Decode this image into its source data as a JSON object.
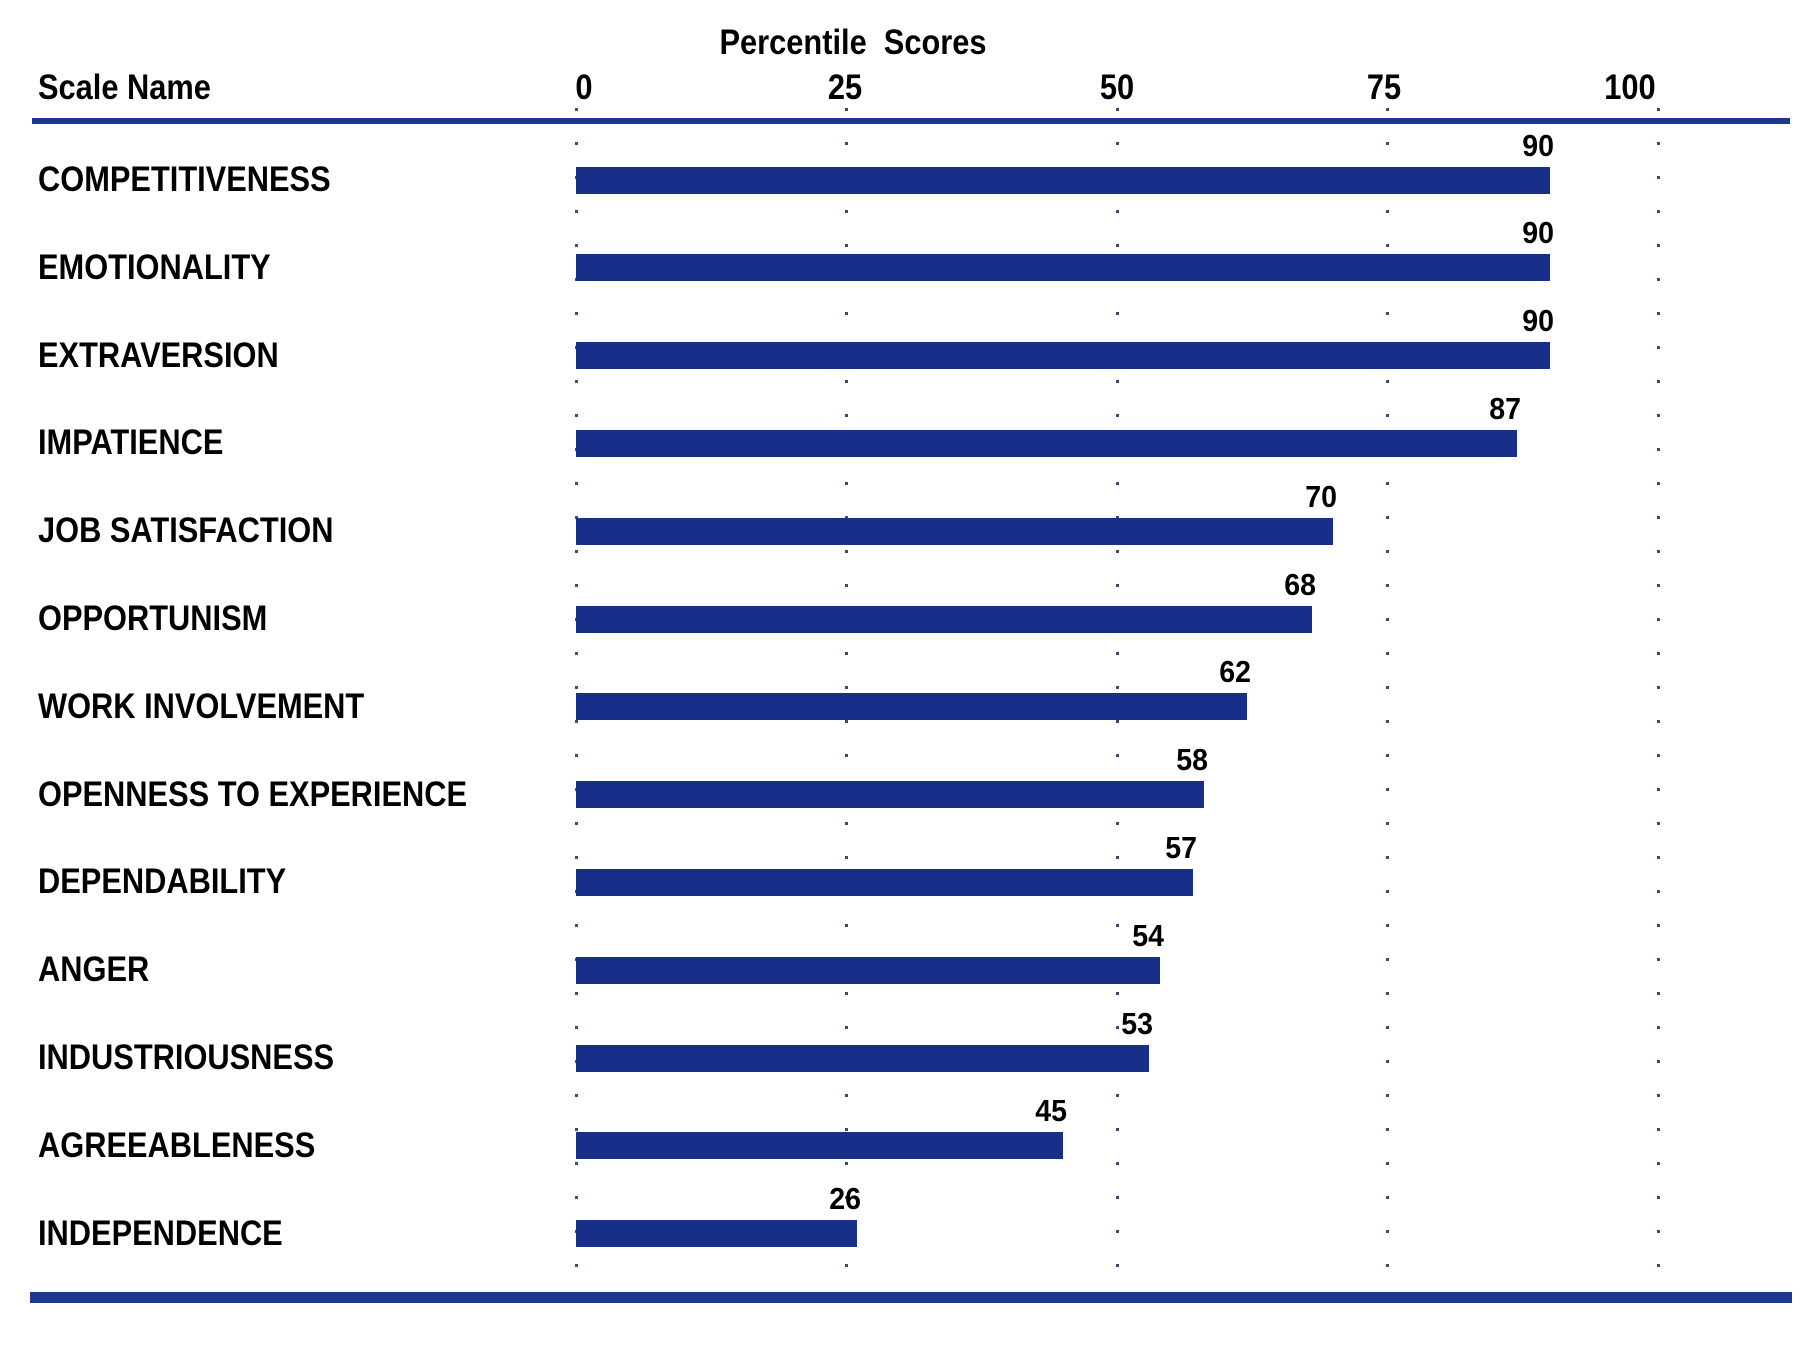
{
  "chart_data": {
    "type": "bar",
    "orientation": "horizontal",
    "title": "Percentile  Scores",
    "column_header": "Scale Name",
    "categories": [
      "COMPETITIVENESS",
      "EMOTIONALITY",
      "EXTRAVERSION",
      "IMPATIENCE",
      "JOB SATISFACTION",
      "OPPORTUNISM",
      "WORK INVOLVEMENT",
      "OPENNESS TO EXPERIENCE",
      "DEPENDABILITY",
      "ANGER",
      "INDUSTRIOUSNESS",
      "AGREEABLENESS",
      "INDEPENDENCE"
    ],
    "values": [
      90,
      90,
      90,
      87,
      70,
      68,
      62,
      58,
      57,
      54,
      53,
      45,
      26
    ],
    "x_ticks": [
      0,
      25,
      50,
      75,
      100
    ],
    "xlim": [
      0,
      100
    ],
    "grid": "dotted-vertical",
    "legend": "none",
    "bar_color": "#182F8A",
    "rule_color": "#1C3892",
    "grid_dot_color": "#3E4A70",
    "text_color": "#000000"
  }
}
